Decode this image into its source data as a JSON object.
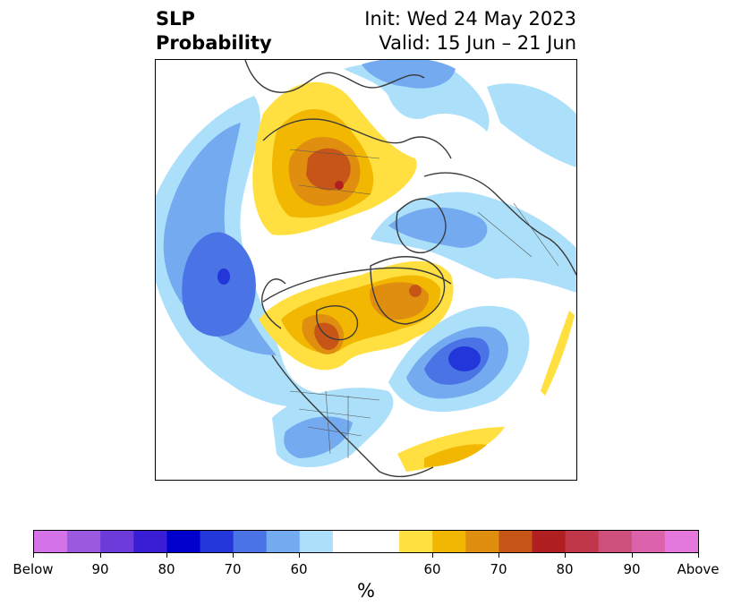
{
  "title": {
    "left_line1": "SLP",
    "left_line2": "Probability",
    "right_line1": "Init: Wed 24 May 2023",
    "right_line2": "Valid: 15 Jun – 21 Jun"
  },
  "colorbar": {
    "unit": "%",
    "colors": [
      "#d472e8",
      "#9b59e0",
      "#6c3bd9",
      "#3a1ed6",
      "#0000cc",
      "#2336d9",
      "#4a73e6",
      "#74aaf0",
      "#ace0fa",
      "#ffffff",
      "#ffffff",
      "#ffe040",
      "#f2b700",
      "#e08e10",
      "#c75518",
      "#b02020",
      "#c0374a",
      "#cc4f7e",
      "#dc62ab",
      "#e578dc"
    ],
    "tick_labels": [
      "Below",
      "90",
      "80",
      "70",
      "60",
      "60",
      "70",
      "80",
      "90",
      "Above"
    ]
  },
  "legend": {
    "below_colors": [
      "#ace0fa",
      "#74aaf0",
      "#4a73e6",
      "#2336d9"
    ],
    "above_colors": [
      "#ffe040",
      "#f2b700",
      "#e08e10",
      "#c75518",
      "#b02020"
    ]
  }
}
